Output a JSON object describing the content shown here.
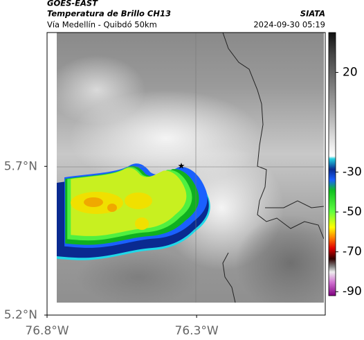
{
  "header": {
    "source": "GOES-EAST",
    "title": "Temperatura de Brillo CH13",
    "subtitle": "Vía Medellín - Quibdó 50km",
    "org": "SIATA",
    "datetime": "2024-09-30 05:19"
  },
  "map": {
    "xlim": [
      -76.8,
      -75.87
    ],
    "ylim": [
      5.2,
      6.15
    ],
    "xticks": [
      {
        "value": -76.8,
        "label": "76.8°W"
      },
      {
        "value": -76.3,
        "label": "76.3°W"
      }
    ],
    "yticks": [
      {
        "value": 5.2,
        "label": "5.2°N"
      },
      {
        "value": 5.7,
        "label": "5.7°N"
      }
    ]
  },
  "colorbar": {
    "lim": [
      -92,
      40
    ],
    "ticks": [
      20,
      -30,
      -50,
      -70,
      -90
    ]
  }
}
